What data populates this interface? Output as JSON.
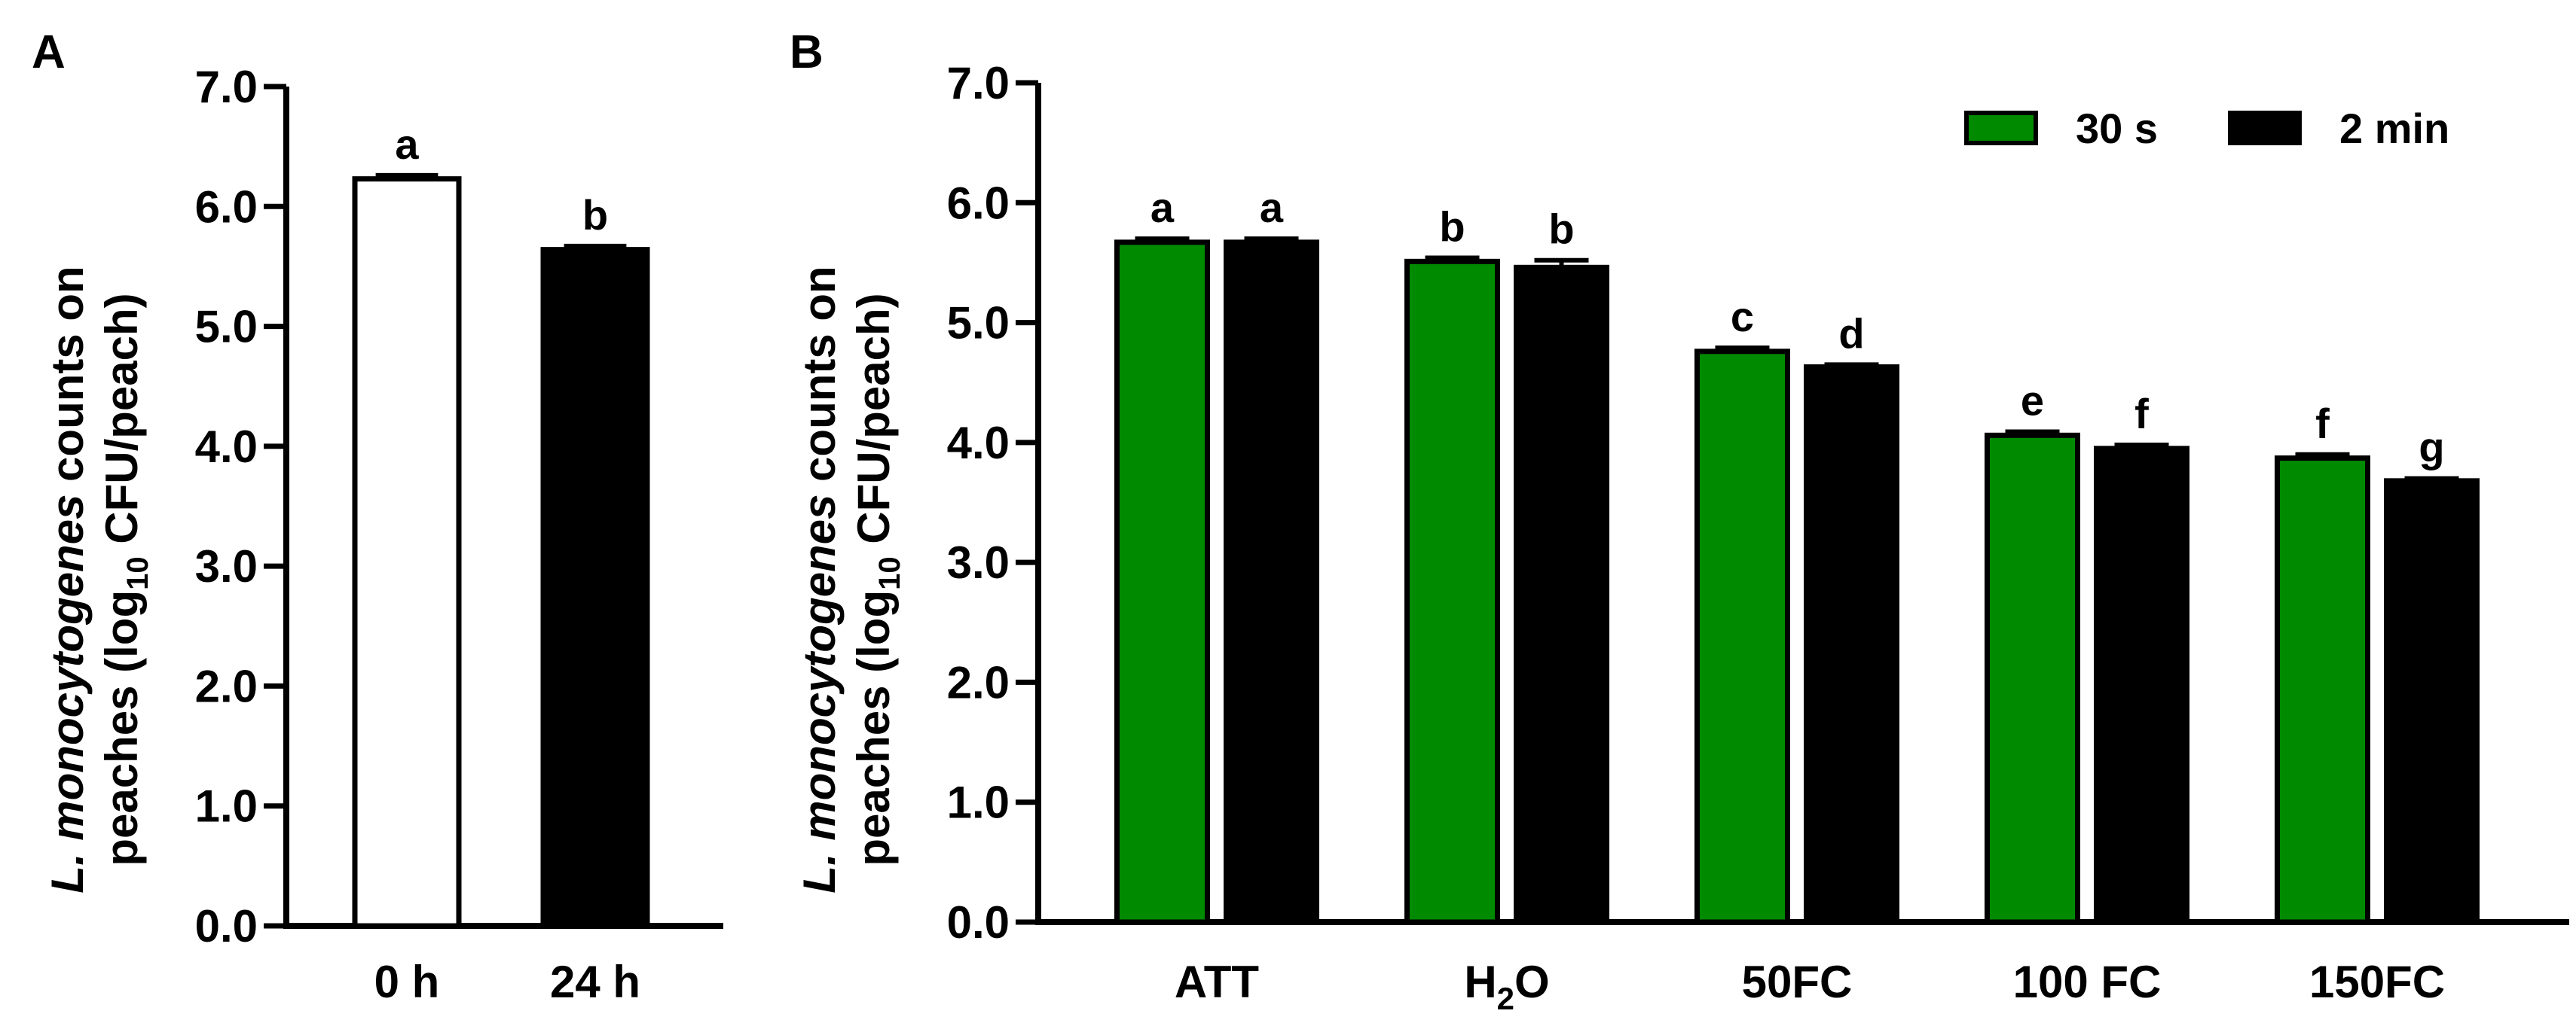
{
  "chart_data": [
    {
      "type": "bar",
      "panel_label": "A",
      "categories": [
        "0 h",
        "24 h"
      ],
      "values": [
        6.23,
        5.64
      ],
      "errors": [
        0.03,
        0.03
      ],
      "bar_colors": [
        "#ffffff",
        "#000000"
      ],
      "letters": [
        "a",
        "b"
      ],
      "ylabel_line1_italic": "L. monocytogenes",
      "ylabel_line1_rest": " counts on",
      "ylabel_line2_pre": "peaches (log",
      "ylabel_line2_sub": "10",
      "ylabel_line2_post": " CFU/peach)",
      "ylim": [
        0,
        7
      ],
      "yticks": [
        "0.0",
        "1.0",
        "2.0",
        "3.0",
        "4.0",
        "5.0",
        "6.0",
        "7.0"
      ],
      "grid": false
    },
    {
      "type": "bar",
      "panel_label": "B",
      "categories": [
        "ATT",
        "H2O",
        "50FC",
        "100 FC",
        "150FC"
      ],
      "category_labels": [
        {
          "main": "ATT",
          "sub": "",
          "tail": ""
        },
        {
          "main": "H",
          "sub": "2",
          "tail": "O"
        },
        {
          "main": "50FC",
          "sub": "",
          "tail": ""
        },
        {
          "main": "100 FC",
          "sub": "",
          "tail": ""
        },
        {
          "main": "150FC",
          "sub": "",
          "tail": ""
        }
      ],
      "series": [
        {
          "name": "30 s",
          "color": "#008a00",
          "values": [
            5.67,
            5.51,
            4.76,
            4.06,
            3.87
          ],
          "errors": [
            0.03,
            0.03,
            0.03,
            0.03,
            0.03
          ],
          "letters": [
            "a",
            "b",
            "c",
            "e",
            "f"
          ]
        },
        {
          "name": "2 min",
          "color": "#000000",
          "values": [
            5.67,
            5.46,
            4.63,
            3.95,
            3.68
          ],
          "errors": [
            0.03,
            0.06,
            0.02,
            0.03,
            0.02
          ],
          "letters": [
            "a",
            "b",
            "d",
            "f",
            "g"
          ]
        }
      ],
      "ylabel_line1_italic": "L. monocytogenes",
      "ylabel_line1_rest": " counts on",
      "ylabel_line2_pre": "peaches (log",
      "ylabel_line2_sub": "10",
      "ylabel_line2_post": " CFU/peach)",
      "ylim": [
        0,
        7
      ],
      "yticks": [
        "0.0",
        "1.0",
        "2.0",
        "3.0",
        "4.0",
        "5.0",
        "6.0",
        "7.0"
      ],
      "legend_position": "top-right",
      "grid": false
    }
  ]
}
